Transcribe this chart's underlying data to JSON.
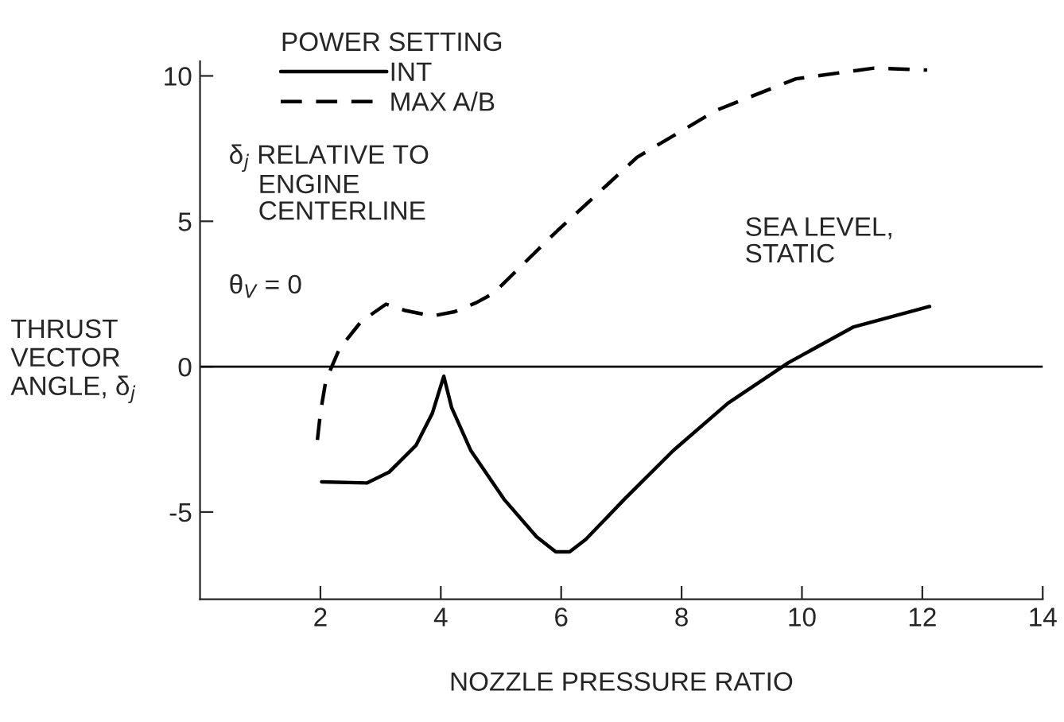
{
  "chart_data": {
    "type": "line",
    "xlabel": "NOZZLE PRESSURE RATIO",
    "ylabel": "THRUST\nVECTOR\nANGLE, δ$_{j}$",
    "legend_title": "POWER SETTING",
    "legend": "top",
    "xlim": [
      0,
      14
    ],
    "xticks": [
      2,
      4,
      6,
      8,
      10,
      12,
      14
    ],
    "ylim": [
      -8,
      10.5
    ],
    "yticks": [
      -5,
      0,
      5,
      10
    ],
    "grid": false,
    "ref_lines": [
      {
        "axis": "y",
        "value": 0,
        "color": "#000000",
        "line_style": "solid"
      }
    ],
    "annotations": [
      {
        "text": "δ$_{j}$ RELATIVE TO\n    ENGINE\n    CENTERLINE"
      },
      {
        "text": "θ$_{V}$ = 0"
      },
      {
        "text": "SEA LEVEL,\nSTATIC"
      }
    ],
    "series": [
      {
        "name": "INT",
        "color": "#000000",
        "line_style": "solid",
        "x": [
          2.02,
          2.77,
          3.14,
          3.59,
          3.86,
          4.05,
          4.18,
          4.5,
          5.05,
          5.59,
          5.91,
          6.14,
          6.41,
          7.05,
          7.86,
          8.77,
          9.77,
          10.86,
          12.12
        ],
        "values": [
          -3.96,
          -4.0,
          -3.63,
          -2.7,
          -1.6,
          -0.33,
          -1.41,
          -2.89,
          -4.56,
          -5.85,
          -6.37,
          -6.37,
          -5.94,
          -4.56,
          -2.89,
          -1.26,
          0.13,
          1.37,
          2.07
        ]
      },
      {
        "name": "MAX A/B",
        "color": "#000000",
        "line_style": "dashed",
        "x": [
          1.95,
          2.0,
          2.09,
          2.32,
          2.68,
          3.09,
          3.41,
          3.86,
          4.23,
          4.59,
          4.88,
          5.67,
          5.94,
          7.26,
          8.58,
          9.9,
          11.2,
          12.08
        ],
        "values": [
          -2.52,
          -1.59,
          -0.48,
          0.63,
          1.56,
          2.15,
          1.93,
          1.74,
          1.89,
          2.2,
          2.53,
          4.14,
          4.68,
          7.2,
          8.82,
          9.9,
          10.27,
          10.2
        ]
      }
    ]
  }
}
